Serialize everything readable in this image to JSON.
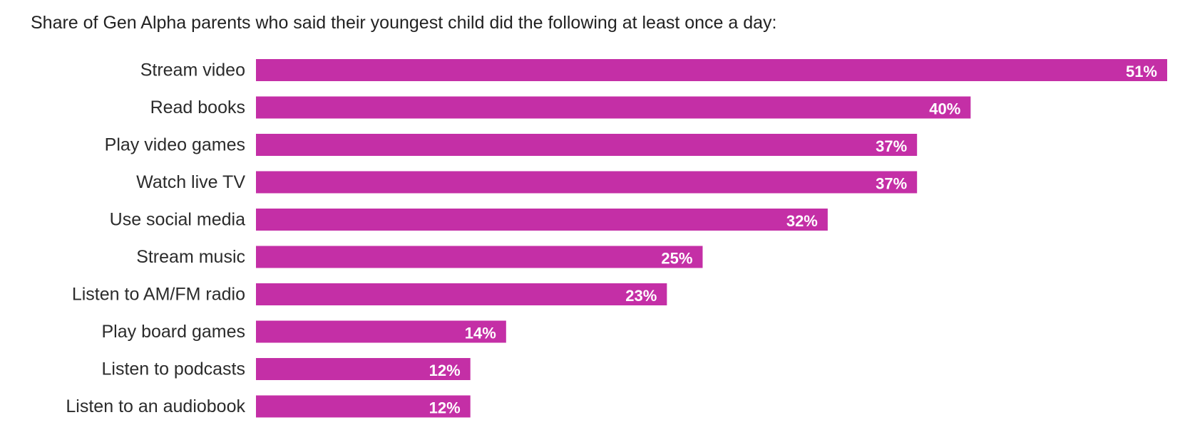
{
  "chart_data": {
    "type": "bar",
    "orientation": "horizontal",
    "title": "Share of Gen Alpha parents who said their youngest child did the following at least once a day:",
    "categories": [
      "Stream video",
      "Read books",
      "Play video games",
      "Watch live TV",
      "Use social media",
      "Stream music",
      "Listen to AM/FM radio",
      "Play board games",
      "Listen to podcasts",
      "Listen to an audiobook"
    ],
    "values": [
      51,
      40,
      37,
      37,
      32,
      25,
      23,
      14,
      12,
      12
    ],
    "value_labels": [
      "51%",
      "40%",
      "37%",
      "37%",
      "32%",
      "25%",
      "23%",
      "14%",
      "12%",
      "12%"
    ],
    "xlim": [
      0,
      51
    ],
    "grid": false,
    "legend": "none",
    "bar_color": "#c42fa6",
    "value_label_color": "#ffffff"
  }
}
